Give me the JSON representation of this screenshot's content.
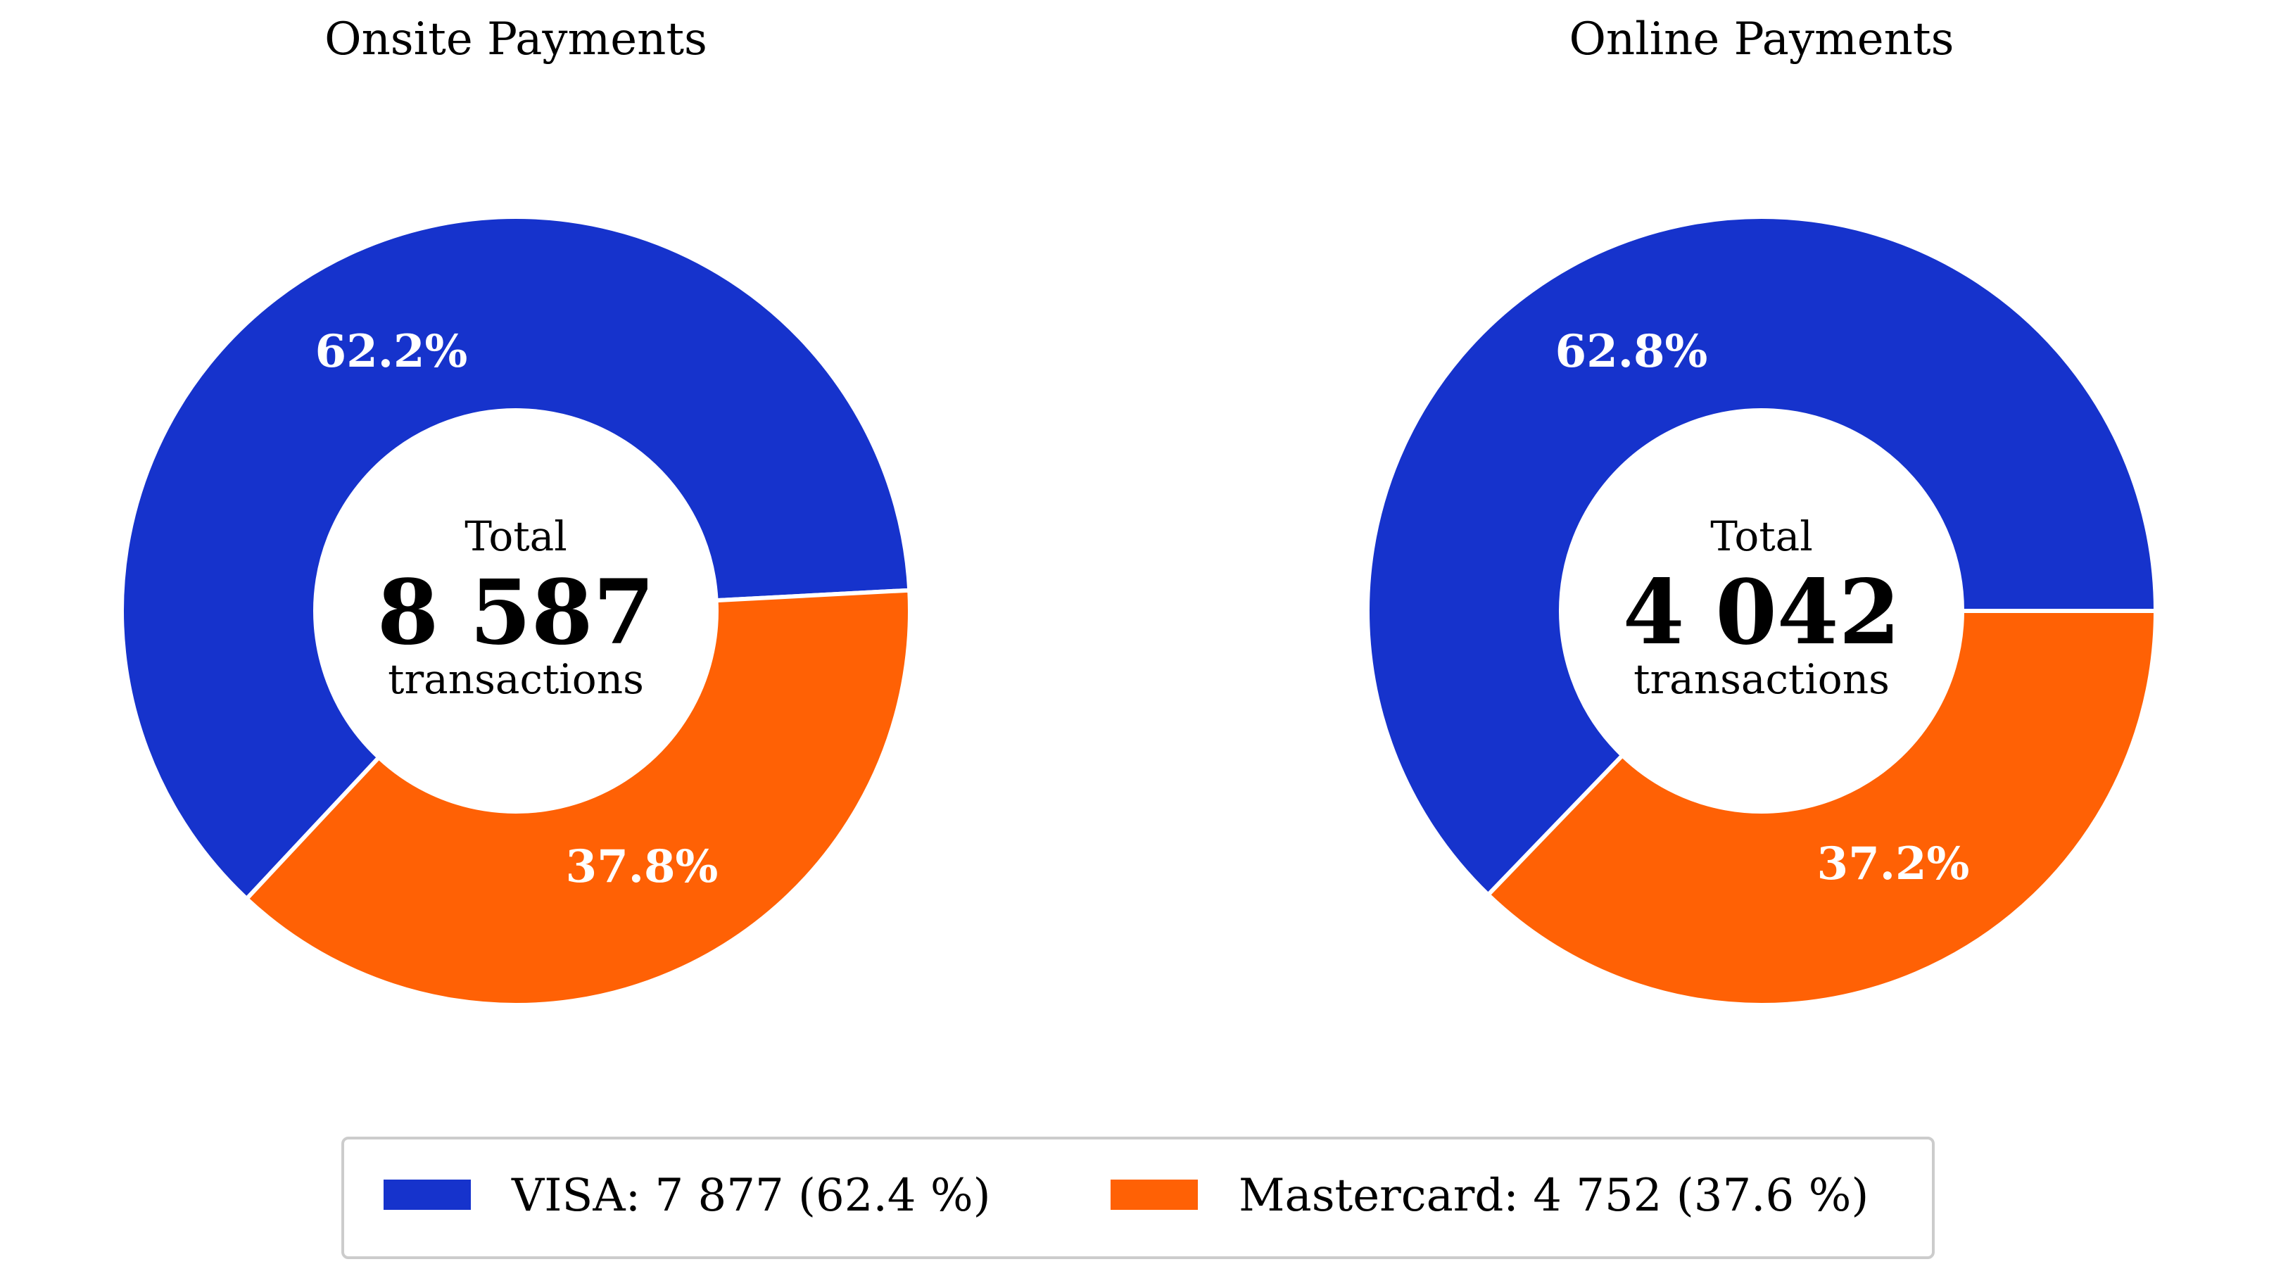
{
  "chart_data": [
    {
      "type": "pie",
      "title": "Onsite Payments",
      "categories": [
        "VISA",
        "Mastercard"
      ],
      "values": [
        62.2,
        37.8
      ],
      "value_labels": [
        "62.2%",
        "37.8%"
      ],
      "colors": [
        "#1633cc",
        "#ff6105"
      ],
      "center": {
        "top": "Total",
        "value": "8 587",
        "bottom": "transactions"
      }
    },
    {
      "type": "pie",
      "title": "Online Payments",
      "categories": [
        "VISA",
        "Mastercard"
      ],
      "values": [
        62.8,
        37.2
      ],
      "value_labels": [
        "62.8%",
        "37.2%"
      ],
      "colors": [
        "#1633cc",
        "#ff6105"
      ],
      "center": {
        "top": "Total",
        "value": "4 042",
        "bottom": "transactions"
      }
    }
  ],
  "legend": {
    "placement": "bottom-center",
    "items": [
      {
        "label": "VISA: 7 877 (62.4 %)",
        "color": "#1633cc"
      },
      {
        "label": "Mastercard: 4 752 (37.6 %)",
        "color": "#ff6105"
      }
    ]
  }
}
